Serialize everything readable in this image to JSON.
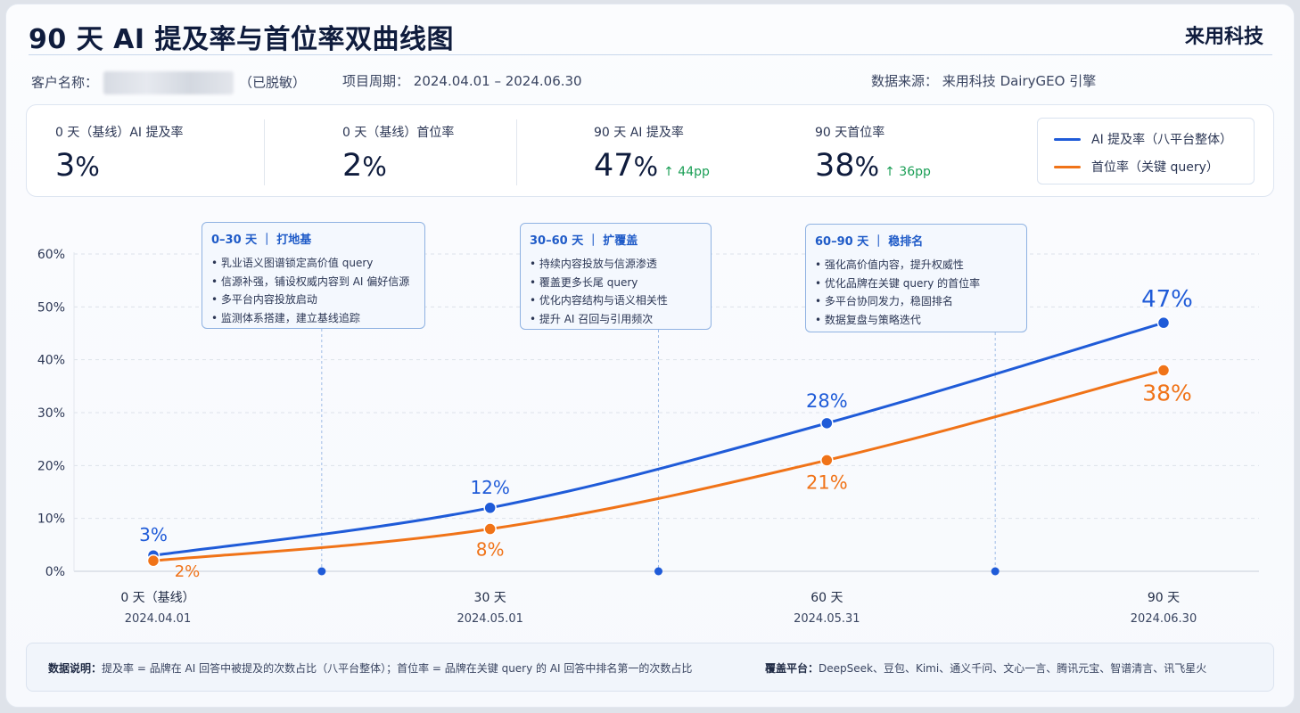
{
  "header": {
    "title": "90 天 AI 提及率与首位率双曲线图",
    "brand": "来用科技"
  },
  "meta": {
    "client_label": "客户名称：",
    "client_suffix": "（已脱敏）",
    "period_label": "项目周期：",
    "period_value": "2024.04.01 – 2024.06.30",
    "source_label": "数据来源：",
    "source_value": "来用科技 DairyGEO 引擎"
  },
  "kpis": [
    {
      "label": "0 天（基线）AI 提及率",
      "value": "3",
      "unit": "%",
      "delta": ""
    },
    {
      "label": "0 天（基线）首位率",
      "value": "2",
      "unit": "%",
      "delta": ""
    },
    {
      "label": "90 天 AI 提及率",
      "value": "47",
      "unit": "%",
      "delta": "↑ 44pp"
    },
    {
      "label": "90 天首位率",
      "value": "38",
      "unit": "%",
      "delta": "↑ 36pp"
    }
  ],
  "legend": [
    {
      "label": "AI 提及率（八平台整体）",
      "color": "#1f5bd8"
    },
    {
      "label": "首位率（关键 query）",
      "color": "#f07318"
    }
  ],
  "phases": [
    {
      "title": "0–30 天 ｜ 打地基",
      "items": [
        "乳业语义图谱锁定高价值 query",
        "信源补强，铺设权威内容到 AI 偏好信源",
        "多平台内容投放启动",
        "监测体系搭建，建立基线追踪"
      ]
    },
    {
      "title": "30–60 天 ｜ 扩覆盖",
      "items": [
        "持续内容投放与信源渗透",
        "覆盖更多长尾 query",
        "优化内容结构与语义相关性",
        "提升 AI 召回与引用频次"
      ]
    },
    {
      "title": "60–90 天 ｜ 稳排名",
      "items": [
        "强化高价值内容，提升权威性",
        "优化品牌在关键 query 的首位率",
        "多平台协同发力，稳固排名",
        "数据复盘与策略迭代"
      ]
    }
  ],
  "chart_data": {
    "type": "line",
    "x": [
      0,
      30,
      60,
      90
    ],
    "x_labels": [
      "0 天（基线）",
      "30 天",
      "60 天",
      "90 天"
    ],
    "x_dates": [
      "2024.04.01",
      "2024.05.01",
      "2024.05.31",
      "2024.06.30"
    ],
    "ylim": [
      0,
      60
    ],
    "y_ticks": [
      0,
      10,
      20,
      30,
      40,
      50,
      60
    ],
    "y_tick_labels": [
      "0%",
      "10%",
      "20%",
      "30%",
      "40%",
      "50%",
      "60%"
    ],
    "grid": true,
    "series": [
      {
        "name": "AI 提及率（八平台整体）",
        "values": [
          3,
          12,
          28,
          47
        ],
        "labels": [
          "3%",
          "12%",
          "28%",
          "47%"
        ],
        "color": "#1f5bd8"
      },
      {
        "name": "首位率（关键 query）",
        "values": [
          2,
          8,
          21,
          38
        ],
        "labels": [
          "2%",
          "8%",
          "21%",
          "38%"
        ],
        "color": "#f07318"
      }
    ],
    "phase_markers_x": [
      15,
      45,
      75
    ]
  },
  "footer": {
    "note_label": "数据说明：",
    "note_text": "提及率 = 品牌在 AI 回答中被提及的次数占比（八平台整体）；首位率 = 品牌在关键 query 的 AI 回答中排名第一的次数占比",
    "platform_label": "覆盖平台：",
    "platform_text": "DeepSeek、豆包、Kimi、通义千问、文心一言、腾讯元宝、智谱清言、讯飞星火"
  }
}
